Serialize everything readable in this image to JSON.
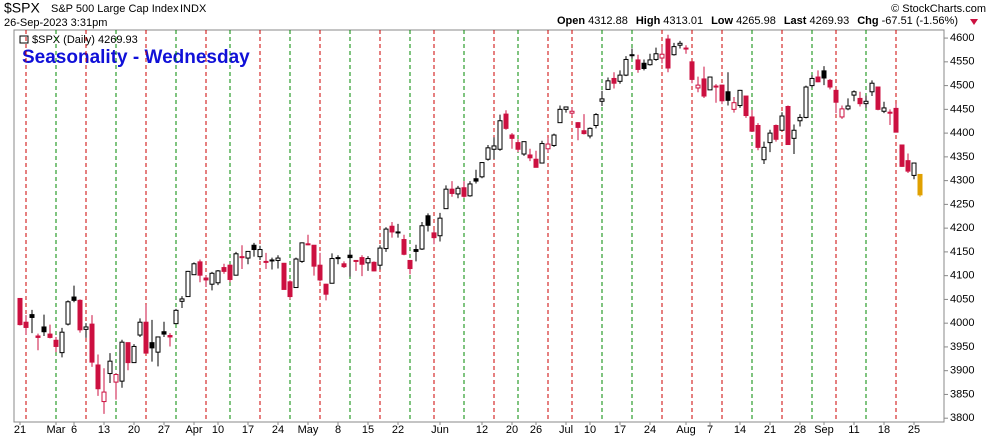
{
  "chart_data": {
    "type": "candlestick",
    "symbol": "$SPX",
    "name": "S&P 500 Large Cap Index",
    "exchange": "INDX",
    "timestamp": "26-Sep-2023 3:31pm",
    "copyright": "© StockCharts.com",
    "quote": [
      {
        "label": "Open",
        "value": 4312.88
      },
      {
        "label": "High",
        "value": 4313.01
      },
      {
        "label": "Low",
        "value": 4265.98
      },
      {
        "label": "Last",
        "value": 4269.93
      },
      {
        "label": "Chg",
        "value": -67.51,
        "pct": "(-1.56%)"
      }
    ],
    "legend": "$SPX (Daily) 4269.93",
    "title": "Seasonality - Wednesday",
    "up_color": "#000000",
    "down_color": "#cc1040",
    "last_color": "#e0a000",
    "categories": [
      "Feb 21",
      "Feb 22",
      "Feb 23",
      "Feb 24",
      "Feb 27",
      "Feb 28",
      "Mar 1",
      "Mar 2",
      "Mar 3",
      "Mar 6",
      "Mar 7",
      "Mar 8",
      "Mar 9",
      "Mar 10",
      "Mar 13",
      "Mar 14",
      "Mar 15",
      "Mar 16",
      "Mar 17",
      "Mar 20",
      "Mar 21",
      "Mar 22",
      "Mar 23",
      "Mar 24",
      "Mar 27",
      "Mar 28",
      "Mar 29",
      "Mar 30",
      "Mar 31",
      "Apr 3",
      "Apr 4",
      "Apr 5",
      "Apr 6",
      "Apr 10",
      "Apr 11",
      "Apr 12",
      "Apr 13",
      "Apr 14",
      "Apr 17",
      "Apr 18",
      "Apr 19",
      "Apr 20",
      "Apr 21",
      "Apr 24",
      "Apr 25",
      "Apr 26",
      "Apr 27",
      "Apr 28",
      "May 1",
      "May 2",
      "May 3",
      "May 4",
      "May 5",
      "May 8",
      "May 9",
      "May 10",
      "May 11",
      "May 12",
      "May 15",
      "May 16",
      "May 17",
      "May 18",
      "May 19",
      "May 22",
      "May 23",
      "May 24",
      "May 25",
      "May 26",
      "May 30",
      "May 31",
      "Jun 1",
      "Jun 2",
      "Jun 5",
      "Jun 6",
      "Jun 7",
      "Jun 8",
      "Jun 9",
      "Jun 12",
      "Jun 13",
      "Jun 14",
      "Jun 15",
      "Jun 16",
      "Jun 20",
      "Jun 21",
      "Jun 22",
      "Jun 23",
      "Jun 26",
      "Jun 27",
      "Jun 28",
      "Jun 29",
      "Jun 30",
      "Jul 3",
      "Jul 5",
      "Jul 6",
      "Jul 7",
      "Jul 10",
      "Jul 11",
      "Jul 12",
      "Jul 13",
      "Jul 14",
      "Jul 17",
      "Jul 18",
      "Jul 19",
      "Jul 20",
      "Jul 21",
      "Jul 24",
      "Jul 25",
      "Jul 26",
      "Jul 27",
      "Jul 28",
      "Jul 31",
      "Aug 1",
      "Aug 2",
      "Aug 3",
      "Aug 4",
      "Aug 7",
      "Aug 8",
      "Aug 9",
      "Aug 10",
      "Aug 11",
      "Aug 14",
      "Aug 15",
      "Aug 16",
      "Aug 17",
      "Aug 18",
      "Aug 21",
      "Aug 22",
      "Aug 23",
      "Aug 24",
      "Aug 25",
      "Aug 28",
      "Aug 29",
      "Aug 30",
      "Aug 31",
      "Sep 1",
      "Sep 5",
      "Sep 6",
      "Sep 7",
      "Sep 8",
      "Sep 11",
      "Sep 12",
      "Sep 13",
      "Sep 14",
      "Sep 15",
      "Sep 18",
      "Sep 19",
      "Sep 20",
      "Sep 21",
      "Sep 22",
      "Sep 25",
      "Sep 26"
    ],
    "ohlc": [
      [
        4052,
        4052,
        3995,
        3997
      ],
      [
        4002,
        4017,
        3976,
        3991
      ],
      [
        4018,
        4028,
        3979,
        4012
      ],
      [
        3973,
        3978,
        3943,
        3970
      ],
      [
        3992,
        4018,
        3973,
        3982
      ],
      [
        3977,
        3997,
        3968,
        3970
      ],
      [
        3964,
        3971,
        3939,
        3951
      ],
      [
        3938,
        3990,
        3928,
        3981
      ],
      [
        3998,
        4048,
        3995,
        4045
      ],
      [
        4055,
        4079,
        4044,
        4048
      ],
      [
        4048,
        4050,
        3980,
        3986
      ],
      [
        3987,
        4000,
        3969,
        3992
      ],
      [
        3998,
        4017,
        3908,
        3918
      ],
      [
        3912,
        3934,
        3847,
        3862
      ],
      [
        3835,
        3905,
        3809,
        3855
      ],
      [
        3894,
        3937,
        3874,
        3920
      ],
      [
        3876,
        3894,
        3839,
        3892
      ],
      [
        3878,
        3965,
        3864,
        3960
      ],
      [
        3959,
        3959,
        3901,
        3917
      ],
      [
        3917,
        3956,
        3917,
        3951
      ],
      [
        3975,
        4010,
        3971,
        4002
      ],
      [
        4002,
        4039,
        3936,
        3937
      ],
      [
        3959,
        4007,
        3919,
        3948
      ],
      [
        3939,
        3972,
        3909,
        3971
      ],
      [
        3982,
        4003,
        3971,
        3977
      ],
      [
        3974,
        3979,
        3951,
        3971
      ],
      [
        3999,
        4030,
        3999,
        4027
      ],
      [
        4046,
        4057,
        4032,
        4051
      ],
      [
        4056,
        4110,
        4056,
        4109
      ],
      [
        4102,
        4128,
        4102,
        4125
      ],
      [
        4129,
        4134,
        4086,
        4101
      ],
      [
        4095,
        4100,
        4076,
        4091
      ],
      [
        4082,
        4108,
        4069,
        4105
      ],
      [
        4085,
        4112,
        4080,
        4110
      ],
      [
        4117,
        4125,
        4104,
        4109
      ],
      [
        4122,
        4124,
        4086,
        4092
      ],
      [
        4101,
        4150,
        4100,
        4146
      ],
      [
        4140,
        4164,
        4114,
        4138
      ],
      [
        4137,
        4152,
        4124,
        4151
      ],
      [
        4164,
        4169,
        4140,
        4155
      ],
      [
        4140,
        4163,
        4133,
        4155
      ],
      [
        4130,
        4148,
        4114,
        4130
      ],
      [
        4132,
        4138,
        4113,
        4133
      ],
      [
        4132,
        4143,
        4115,
        4137
      ],
      [
        4126,
        4127,
        4071,
        4071
      ],
      [
        4087,
        4090,
        4050,
        4056
      ],
      [
        4075,
        4138,
        4075,
        4135
      ],
      [
        4130,
        4170,
        4127,
        4169
      ],
      [
        4166,
        4186,
        4164,
        4167
      ],
      [
        4164,
        4164,
        4100,
        4120
      ],
      [
        4122,
        4148,
        4088,
        4091
      ],
      [
        4082,
        4083,
        4048,
        4061
      ],
      [
        4084,
        4147,
        4084,
        4136
      ],
      [
        4136,
        4143,
        4124,
        4138
      ],
      [
        4125,
        4130,
        4116,
        4119
      ],
      [
        4143,
        4154,
        4098,
        4138
      ],
      [
        4132,
        4132,
        4110,
        4131
      ],
      [
        4138,
        4143,
        4099,
        4124
      ],
      [
        4127,
        4141,
        4110,
        4136
      ],
      [
        4128,
        4130,
        4109,
        4110
      ],
      [
        4122,
        4164,
        4113,
        4158
      ],
      [
        4157,
        4202,
        4150,
        4198
      ],
      [
        4204,
        4213,
        4180,
        4192
      ],
      [
        4191,
        4209,
        4180,
        4192
      ],
      [
        4176,
        4186,
        4143,
        4145
      ],
      [
        4132,
        4133,
        4103,
        4115
      ],
      [
        4155,
        4165,
        4130,
        4151
      ],
      [
        4156,
        4213,
        4154,
        4205
      ],
      [
        4226,
        4231,
        4193,
        4206
      ],
      [
        4190,
        4196,
        4166,
        4180
      ],
      [
        4184,
        4232,
        4172,
        4221
      ],
      [
        4241,
        4290,
        4241,
        4282
      ],
      [
        4282,
        4299,
        4266,
        4273
      ],
      [
        4272,
        4289,
        4263,
        4284
      ],
      [
        4285,
        4299,
        4264,
        4267
      ],
      [
        4268,
        4299,
        4266,
        4293
      ],
      [
        4304,
        4323,
        4294,
        4299
      ],
      [
        4308,
        4339,
        4305,
        4338
      ],
      [
        4345,
        4375,
        4342,
        4369
      ],
      [
        4366,
        4391,
        4345,
        4373
      ],
      [
        4366,
        4439,
        4363,
        4426
      ],
      [
        4440,
        4448,
        4407,
        4410
      ],
      [
        4396,
        4400,
        4367,
        4389
      ],
      [
        4380,
        4387,
        4360,
        4366
      ],
      [
        4356,
        4382,
        4352,
        4382
      ],
      [
        4354,
        4367,
        4341,
        4348
      ],
      [
        4345,
        4363,
        4328,
        4328
      ],
      [
        4337,
        4384,
        4336,
        4378
      ],
      [
        4367,
        4390,
        4360,
        4377
      ],
      [
        4374,
        4399,
        4371,
        4396
      ],
      [
        4422,
        4458,
        4422,
        4450
      ],
      [
        4450,
        4456,
        4443,
        4455
      ],
      [
        4442,
        4454,
        4436,
        4446
      ],
      [
        4422,
        4423,
        4385,
        4412
      ],
      [
        4405,
        4440,
        4397,
        4399
      ],
      [
        4394,
        4412,
        4389,
        4410
      ],
      [
        4416,
        4442,
        4410,
        4439
      ],
      [
        4467,
        4489,
        4457,
        4472
      ],
      [
        4492,
        4517,
        4491,
        4510
      ],
      [
        4515,
        4528,
        4494,
        4505
      ],
      [
        4509,
        4532,
        4504,
        4522
      ],
      [
        4522,
        4562,
        4520,
        4555
      ],
      [
        4563,
        4578,
        4557,
        4565
      ],
      [
        4554,
        4565,
        4527,
        4534
      ],
      [
        4547,
        4555,
        4532,
        4536
      ],
      [
        4544,
        4567,
        4542,
        4554
      ],
      [
        4555,
        4580,
        4552,
        4567
      ],
      [
        4558,
        4582,
        4547,
        4566
      ],
      [
        4598,
        4607,
        4528,
        4537
      ],
      [
        4565,
        4590,
        4563,
        4582
      ],
      [
        4585,
        4594,
        4578,
        4589
      ],
      [
        4579,
        4585,
        4567,
        4577
      ],
      [
        4550,
        4550,
        4505,
        4513
      ],
      [
        4495,
        4519,
        4486,
        4501
      ],
      [
        4514,
        4540,
        4474,
        4478
      ],
      [
        4491,
        4519,
        4491,
        4518
      ],
      [
        4498,
        4503,
        4464,
        4499
      ],
      [
        4501,
        4502,
        4461,
        4468
      ],
      [
        4487,
        4528,
        4458,
        4469
      ],
      [
        4450,
        4476,
        4443,
        4464
      ],
      [
        4458,
        4491,
        4453,
        4490
      ],
      [
        4478,
        4478,
        4432,
        4437
      ],
      [
        4434,
        4449,
        4403,
        4404
      ],
      [
        4416,
        4421,
        4364,
        4370
      ],
      [
        4344,
        4382,
        4335,
        4370
      ],
      [
        4380,
        4407,
        4360,
        4400
      ],
      [
        4416,
        4418,
        4382,
        4387
      ],
      [
        4406,
        4444,
        4406,
        4436
      ],
      [
        4456,
        4458,
        4375,
        4376
      ],
      [
        4389,
        4418,
        4356,
        4406
      ],
      [
        4426,
        4440,
        4414,
        4433
      ],
      [
        4433,
        4500,
        4431,
        4497
      ],
      [
        4500,
        4522,
        4496,
        4515
      ],
      [
        4518,
        4532,
        4507,
        4508
      ],
      [
        4531,
        4541,
        4501,
        4516
      ],
      [
        4511,
        4514,
        4492,
        4497
      ],
      [
        4490,
        4490,
        4442,
        4465
      ],
      [
        4434,
        4458,
        4430,
        4451
      ],
      [
        4451,
        4473,
        4448,
        4457
      ],
      [
        4480,
        4490,
        4467,
        4487
      ],
      [
        4473,
        4487,
        4456,
        4462
      ],
      [
        4462,
        4479,
        4453,
        4467
      ],
      [
        4487,
        4511,
        4478,
        4505
      ],
      [
        4497,
        4497,
        4448,
        4450
      ],
      [
        4446,
        4466,
        4442,
        4453
      ],
      [
        4443,
        4450,
        4417,
        4444
      ],
      [
        4452,
        4462,
        4402,
        4402
      ],
      [
        4375,
        4375,
        4329,
        4330
      ],
      [
        4342,
        4357,
        4316,
        4320
      ],
      [
        4311,
        4338,
        4303,
        4337
      ],
      [
        4313,
        4313,
        4266,
        4270
      ]
    ],
    "wednesday_lines": [
      {
        "x": "Feb 22",
        "color": "#cc0000"
      },
      {
        "x": "Mar 1",
        "color": "#008800"
      },
      {
        "x": "Mar 8",
        "color": "#cc0000"
      },
      {
        "x": "Mar 15",
        "color": "#008800"
      },
      {
        "x": "Mar 22",
        "color": "#cc0000"
      },
      {
        "x": "Mar 29",
        "color": "#008800"
      },
      {
        "x": "Apr 5",
        "color": "#cc0000"
      },
      {
        "x": "Apr 12",
        "color": "#008800"
      },
      {
        "x": "Apr 19",
        "color": "#cc0000"
      },
      {
        "x": "Apr 26",
        "color": "#008800"
      },
      {
        "x": "May 3",
        "color": "#cc0000"
      },
      {
        "x": "May 10",
        "color": "#008800"
      },
      {
        "x": "May 17",
        "color": "#cc0000"
      },
      {
        "x": "May 24",
        "color": "#008800"
      },
      {
        "x": "May 31",
        "color": "#cc0000"
      },
      {
        "x": "Jun 7",
        "color": "#008800"
      },
      {
        "x": "Jun 14",
        "color": "#cc0000"
      },
      {
        "x": "Jun 21",
        "color": "#008800"
      },
      {
        "x": "Jun 28",
        "color": "#cc0000"
      },
      {
        "x": "Jul 5",
        "color": "#cc0000"
      },
      {
        "x": "Jul 12",
        "color": "#008800"
      },
      {
        "x": "Jul 19",
        "color": "#008800"
      },
      {
        "x": "Jul 26",
        "color": "#cc0000"
      },
      {
        "x": "Aug 2",
        "color": "#cc0000"
      },
      {
        "x": "Aug 9",
        "color": "#cc0000"
      },
      {
        "x": "Aug 16",
        "color": "#008800"
      },
      {
        "x": "Aug 23",
        "color": "#cc0000"
      },
      {
        "x": "Aug 30",
        "color": "#008800"
      },
      {
        "x": "Sep 6",
        "color": "#cc0000"
      },
      {
        "x": "Sep 13",
        "color": "#008800"
      },
      {
        "x": "Sep 20",
        "color": "#cc0000"
      }
    ],
    "xticks": [
      {
        "value": "Feb 21",
        "label": "21"
      },
      {
        "value": "Mar 1",
        "label": "Mar"
      },
      {
        "value": "Mar 6",
        "label": "6"
      },
      {
        "value": "Mar 13",
        "label": "13"
      },
      {
        "value": "Mar 20",
        "label": "20"
      },
      {
        "value": "Mar 27",
        "label": "27"
      },
      {
        "value": "Apr 3",
        "label": "Apr"
      },
      {
        "value": "Apr 10",
        "label": "10"
      },
      {
        "value": "Apr 17",
        "label": "17"
      },
      {
        "value": "Apr 24",
        "label": "24"
      },
      {
        "value": "May 1",
        "label": "May"
      },
      {
        "value": "May 8",
        "label": "8"
      },
      {
        "value": "May 15",
        "label": "15"
      },
      {
        "value": "May 22",
        "label": "22"
      },
      {
        "value": "Jun 1",
        "label": "Jun"
      },
      {
        "value": "Jun 12",
        "label": "12"
      },
      {
        "value": "Jun 20",
        "label": "20"
      },
      {
        "value": "Jun 26",
        "label": "26"
      },
      {
        "value": "Jul 3",
        "label": "Jul"
      },
      {
        "value": "Jul 10",
        "label": "10"
      },
      {
        "value": "Jul 17",
        "label": "17"
      },
      {
        "value": "Jul 24",
        "label": "24"
      },
      {
        "value": "Aug 1",
        "label": "Aug"
      },
      {
        "value": "Aug 7",
        "label": "7"
      },
      {
        "value": "Aug 14",
        "label": "14"
      },
      {
        "value": "Aug 21",
        "label": "21"
      },
      {
        "value": "Aug 28",
        "label": "28"
      },
      {
        "value": "Sep 1",
        "label": "Sep"
      },
      {
        "value": "Sep 11",
        "label": "11"
      },
      {
        "value": "Sep 18",
        "label": "18"
      },
      {
        "value": "Sep 25",
        "label": "25"
      }
    ],
    "ylim": [
      3792,
      4617
    ],
    "yticks": [
      3800,
      3850,
      3900,
      3950,
      4000,
      4050,
      4100,
      4150,
      4200,
      4250,
      4300,
      4350,
      4400,
      4450,
      4500,
      4550,
      4600
    ]
  }
}
